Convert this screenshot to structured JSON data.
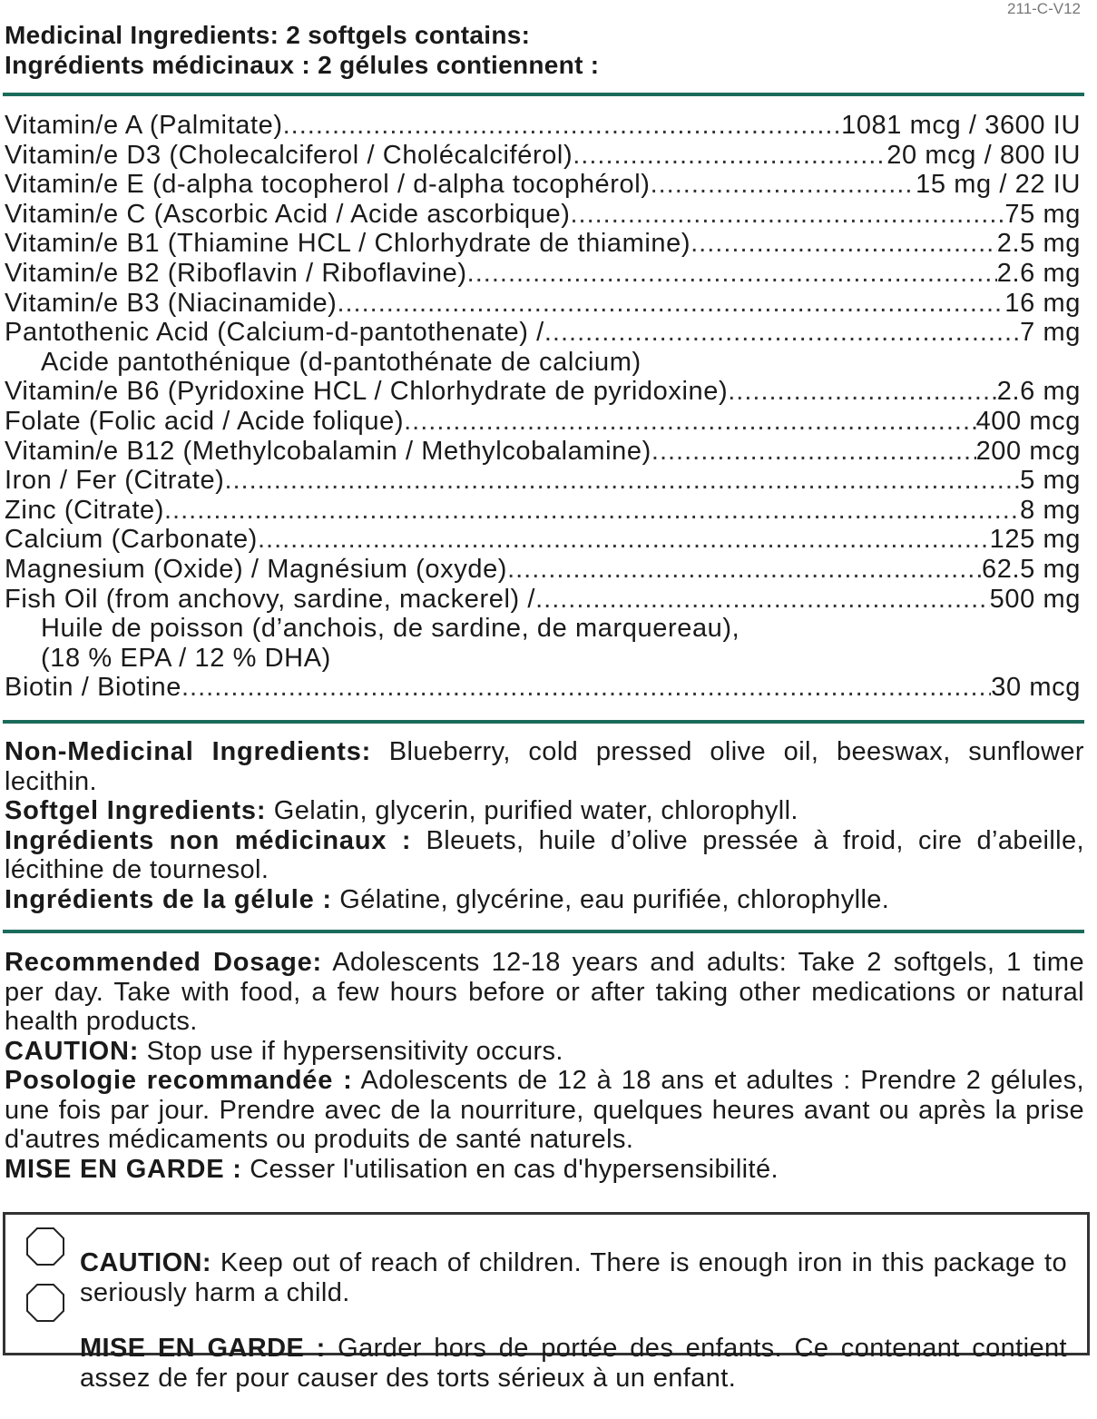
{
  "code": "211-C-V12",
  "colors": {
    "rule": "#1b6b5b",
    "text": "#1a1a1a"
  },
  "title": {
    "en": "Medicinal Ingredients: 2 softgels contains:",
    "fr": "Ingrédients médicinaux : 2 gélules contiennent :"
  },
  "ingredients": [
    {
      "name": "Vitamin/e A (Palmitate)",
      "amount": "1081 mcg / 3600 IU"
    },
    {
      "name": "Vitamin/e D3 (Cholecalciferol / Cholécalciférol)",
      "amount": "20 mcg / 800 IU"
    },
    {
      "name": "Vitamin/e E (d-alpha tocopherol / d-alpha tocophérol)",
      "amount": "15 mg / 22 IU"
    },
    {
      "name": "Vitamin/e C (Ascorbic Acid / Acide ascorbique)",
      "amount": "75 mg"
    },
    {
      "name": "Vitamin/e B1 (Thiamine HCL / Chlorhydrate de thiamine)",
      "amount": "2.5 mg"
    },
    {
      "name": "Vitamin/e B2 (Riboflavin / Riboflavine)",
      "amount": "2.6 mg"
    },
    {
      "name": "Vitamin/e B3 (Niacinamide)",
      "amount": "16 mg"
    },
    {
      "name": "Pantothenic Acid (Calcium-d-pantothenate) /",
      "amount": "7 mg",
      "cont": [
        "Acide pantothénique (d-pantothénate de calcium)"
      ]
    },
    {
      "name": "Vitamin/e B6 (Pyridoxine HCL / Chlorhydrate de pyridoxine)",
      "amount": "2.6 mg"
    },
    {
      "name": "Folate (Folic acid / Acide folique)",
      "amount": "400 mcg"
    },
    {
      "name": "Vitamin/e B12 (Methylcobalamin / Methylcobalamine)",
      "amount": "200 mcg"
    },
    {
      "name": "Iron / Fer (Citrate)",
      "amount": "5 mg"
    },
    {
      "name": "Zinc (Citrate)",
      "amount": "8 mg"
    },
    {
      "name": "Calcium (Carbonate)",
      "amount": "125 mg"
    },
    {
      "name": "Magnesium (Oxide) / Magnésium (oxyde)",
      "amount": "62.5 mg"
    },
    {
      "name": "Fish Oil (from anchovy, sardine, mackerel) /",
      "amount": "500 mg",
      "cont": [
        "Huile de poisson (d’anchois, de sardine, de marquereau),",
        "(18 % EPA / 12 % DHA)"
      ]
    },
    {
      "name": "Biotin / Biotine",
      "amount": "30 mcg"
    }
  ],
  "non_medicinal": [
    {
      "label": "Non-Medicinal Ingredients:",
      "text": " Blueberry, cold pressed olive oil, beeswax, sunflower lecithin."
    },
    {
      "label": "Softgel Ingredients:",
      "text": " Gelatin, glycerin, purified water, chlorophyll."
    },
    {
      "label": "Ingrédients non médicinaux :",
      "text": " Bleuets, huile d’olive pressée à froid, cire d’abeille, lécithine de tournesol."
    },
    {
      "label": "Ingrédients de la gélule :",
      "text": " Gélatine, glycérine, eau purifiée, chlorophylle."
    }
  ],
  "dosage": [
    {
      "label": "Recommended Dosage:",
      "text": " Adolescents 12-18 years and adults: Take 2 softgels, 1 time per day. Take with food, a few hours before or after taking other medications or natural health products."
    },
    {
      "label": "CAUTION:",
      "text": " Stop use if hypersensitivity occurs."
    },
    {
      "label": "Posologie recommandée :",
      "text": " Adolescents de 12 à 18 ans et adultes : Prendre 2 gélules, une fois par jour. Prendre avec de la nourriture, quelques heures avant ou après la prise d'autres médicaments ou produits de santé naturels."
    },
    {
      "label": "MISE EN GARDE :",
      "text": " Cesser l'utilisation en cas d'hypersensibilité."
    }
  ],
  "warnings": [
    {
      "label": "CAUTION:",
      "text": " Keep out of reach of children. There is enough iron in this package to seriously harm a child.",
      "icon": "octagon-icon"
    },
    {
      "label": "MISE EN GARDE :",
      "text": " Garder hors de portée des enfants. Ce contenant contient assez de fer pour causer des torts sérieux à un enfant.",
      "icon": "octagon-icon"
    }
  ]
}
